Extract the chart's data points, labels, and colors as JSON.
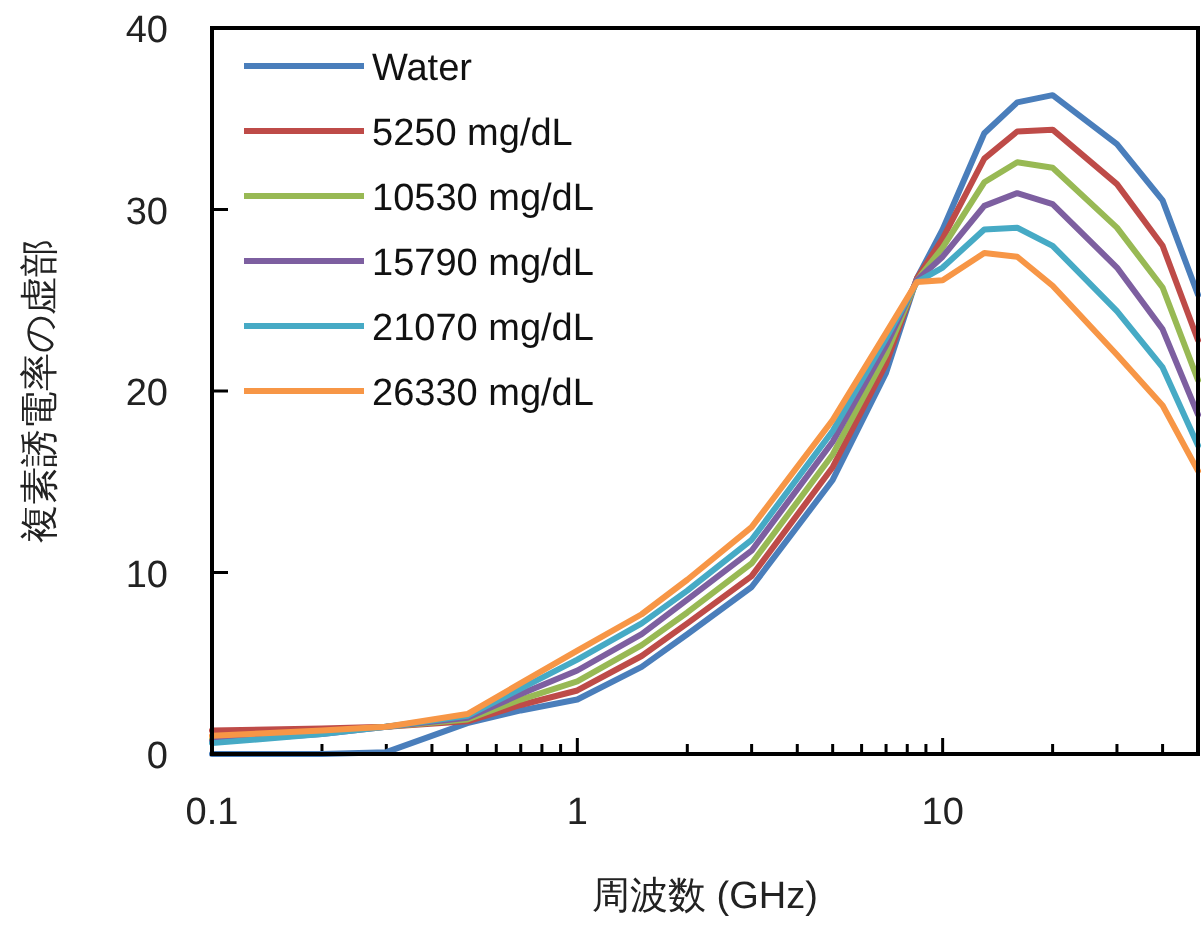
{
  "chart_data": {
    "type": "line",
    "xlabel": "周波数 (GHz)",
    "ylabel": "複素誘電率の虚部",
    "x": [
      0.1,
      0.2,
      0.3,
      0.5,
      0.7,
      1,
      1.5,
      2,
      3,
      5,
      7,
      8.5,
      10,
      13,
      16,
      20,
      30,
      40,
      50
    ],
    "log": "x",
    "xlim": [
      0.1,
      50
    ],
    "ylim": [
      0,
      40
    ],
    "xticks": [
      0.1,
      {
        "value": 0.2,
        "label": null
      },
      {
        "value": 0.3,
        "label": null
      },
      {
        "value": 0.4,
        "label": null
      },
      {
        "value": 0.5,
        "label": null
      },
      {
        "value": 0.6,
        "label": null
      },
      {
        "value": 0.7,
        "label": null
      },
      {
        "value": 0.8,
        "label": null
      },
      {
        "value": 0.9,
        "label": null
      },
      1,
      {
        "value": 2,
        "label": null
      },
      {
        "value": 3,
        "label": null
      },
      {
        "value": 4,
        "label": null
      },
      {
        "value": 5,
        "label": null
      },
      {
        "value": 6,
        "label": null
      },
      {
        "value": 7,
        "label": null
      },
      {
        "value": 8,
        "label": null
      },
      {
        "value": 9,
        "label": null
      },
      10,
      {
        "value": 20,
        "label": null
      },
      {
        "value": 30,
        "label": null
      },
      {
        "value": 40,
        "label": null
      }
    ],
    "yticks": [
      0,
      10,
      20,
      30,
      40
    ],
    "grid": false,
    "legend": "top left",
    "marker": "none",
    "line_style": "solid",
    "series": [
      {
        "name": "Water",
        "color": "#4a7ebb",
        "values": [
          0,
          0,
          0.1,
          1.7,
          2.4,
          3.0,
          4.8,
          6.6,
          9.2,
          15.1,
          21,
          26.2,
          28.9,
          34.2,
          35.9,
          36.3,
          33.6,
          30.5,
          25.3
        ]
      },
      {
        "name": "5250 mg/dL",
        "color": "#be4b48",
        "values": [
          1.3,
          1.4,
          1.5,
          1.8,
          2.7,
          3.5,
          5.4,
          7.2,
          9.8,
          15.8,
          21.5,
          26.2,
          28.4,
          32.8,
          34.3,
          34.4,
          31.4,
          28.0,
          22.8
        ]
      },
      {
        "name": "10530 mg/dL",
        "color": "#98b954",
        "values": [
          0.8,
          1.2,
          1.5,
          1.9,
          3.0,
          4.0,
          6.0,
          7.8,
          10.5,
          16.5,
          22.0,
          26.1,
          27.9,
          31.5,
          32.6,
          32.3,
          29.0,
          25.7,
          20.6
        ]
      },
      {
        "name": "15790 mg/dL",
        "color": "#7d5fa0",
        "values": [
          0.7,
          1.1,
          1.5,
          2.0,
          3.3,
          4.6,
          6.6,
          8.5,
          11.2,
          17.2,
          22.5,
          26.1,
          27.4,
          30.2,
          30.9,
          30.3,
          26.8,
          23.4,
          18.7
        ]
      },
      {
        "name": "21070 mg/dL",
        "color": "#46aac5",
        "values": [
          0.6,
          1.1,
          1.5,
          2.1,
          3.6,
          5.2,
          7.2,
          9.0,
          11.8,
          17.8,
          22.9,
          26.0,
          26.8,
          28.9,
          29.0,
          28.0,
          24.4,
          21.3,
          17.0
        ]
      },
      {
        "name": "26330 mg/dL",
        "color": "#f79646",
        "values": [
          1.0,
          1.3,
          1.5,
          2.2,
          3.9,
          5.7,
          7.7,
          9.6,
          12.5,
          18.4,
          23.2,
          26.0,
          26.1,
          27.6,
          27.4,
          25.8,
          22.0,
          19.2,
          15.6
        ]
      }
    ]
  }
}
